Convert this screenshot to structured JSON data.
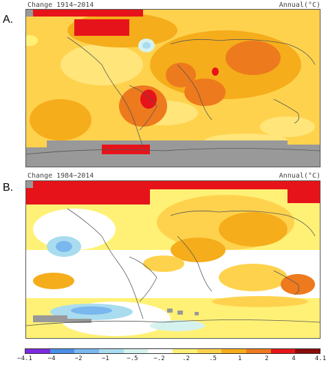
{
  "panels": [
    {
      "letter": "A.",
      "title_left": "Change 1914−2014",
      "title_right": "Annual(°C)"
    },
    {
      "letter": "B.",
      "title_left": "Change 1984−2014",
      "title_right": "Annual(°C)"
    }
  ],
  "legend": {
    "ticks": [
      "−4.1",
      "−4",
      "−2",
      "−1",
      "−.5",
      "−.2",
      ".2",
      ".5",
      "1",
      "2",
      "4",
      "4.1"
    ],
    "colors": [
      "#7d2ae0",
      "#4a8ee8",
      "#79b7ee",
      "#a9dcef",
      "#d6f2ee",
      "#ffffff",
      "#fff176",
      "#ffd24d",
      "#f5ad1b",
      "#ee7a1e",
      "#e6141a",
      "#8a0a0a"
    ]
  }
}
